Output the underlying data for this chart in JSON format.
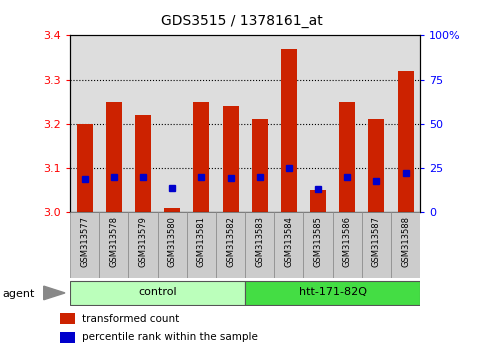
{
  "title": "GDS3515 / 1378161_at",
  "samples": [
    "GSM313577",
    "GSM313578",
    "GSM313579",
    "GSM313580",
    "GSM313581",
    "GSM313582",
    "GSM313583",
    "GSM313584",
    "GSM313585",
    "GSM313586",
    "GSM313587",
    "GSM313588"
  ],
  "red_values": [
    3.2,
    3.25,
    3.22,
    3.01,
    3.25,
    3.24,
    3.21,
    3.37,
    3.05,
    3.25,
    3.21,
    3.32
  ],
  "blue_values": [
    3.075,
    3.08,
    3.08,
    3.055,
    3.08,
    3.078,
    3.08,
    3.1,
    3.052,
    3.08,
    3.072,
    3.09
  ],
  "ymin": 3.0,
  "ymax": 3.4,
  "yticks_left": [
    3.0,
    3.1,
    3.2,
    3.3,
    3.4
  ],
  "yticks_right": [
    0,
    25,
    50,
    75,
    100
  ],
  "ytick_labels_right": [
    "0",
    "25",
    "50",
    "75",
    "100%"
  ],
  "bar_color": "#CC2200",
  "marker_color": "#0000CC",
  "groups": [
    {
      "label": "control",
      "start": 0,
      "end": 6,
      "color": "#BBFFBB"
    },
    {
      "label": "htt-171-82Q",
      "start": 6,
      "end": 12,
      "color": "#44DD44"
    }
  ],
  "legend_items": [
    {
      "color": "#CC2200",
      "label": "transformed count"
    },
    {
      "color": "#0000CC",
      "label": "percentile rank within the sample"
    }
  ],
  "agent_label": "agent",
  "bar_width": 0.55
}
